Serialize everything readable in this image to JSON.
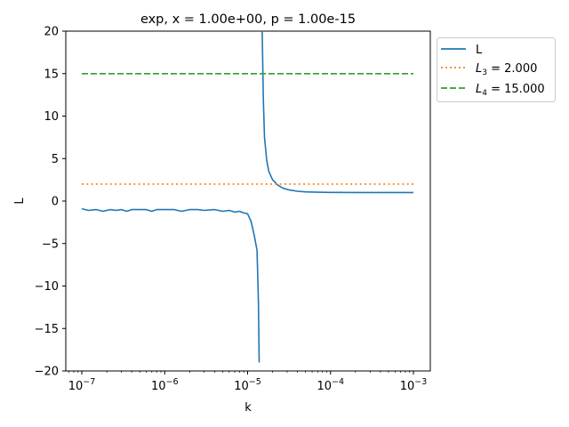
{
  "chart_data": {
    "type": "line",
    "title": "exp, x = 1.00e+00, p = 1.00e-15",
    "xlabel": "k",
    "ylabel": "L",
    "xscale": "log",
    "xlim": [
      6.5e-08,
      0.00155
    ],
    "ylim": [
      -20,
      20
    ],
    "x_ticks": [
      "10^-7",
      "10^-6",
      "10^-5",
      "10^-4",
      "10^-3"
    ],
    "x_tick_exponents": [
      "−7",
      "−6",
      "−5",
      "−4",
      "−3"
    ],
    "y_ticks": [
      "20",
      "15",
      "10",
      "5",
      "0",
      "−5",
      "−10",
      "−15",
      "−20"
    ],
    "grid": false,
    "legend_position": "outside upper right",
    "series": [
      {
        "name": "L",
        "color": "#1f77b4",
        "style": "solid",
        "branches": [
          {
            "x": [
              1e-07,
              1.2e-07,
              1.5e-07,
              1.8e-07,
              2.2e-07,
              2.6e-07,
              3e-07,
              3.5e-07,
              4e-07,
              5e-07,
              6e-07,
              7e-07,
              8e-07,
              1e-06,
              1.3e-06,
              1.6e-06,
              2e-06,
              2.5e-06,
              3e-06,
              4e-06,
              5e-06,
              6e-06,
              7e-06,
              8e-06,
              9e-06,
              1e-05,
              1.1e-05,
              1.2e-05,
              1.3e-05,
              1.35e-05,
              1.38e-05
            ],
            "y": [
              -0.9,
              -1.1,
              -1.0,
              -1.2,
              -1.0,
              -1.1,
              -1.0,
              -1.2,
              -1.0,
              -1.0,
              -1.0,
              -1.2,
              -1.0,
              -1.0,
              -1.0,
              -1.2,
              -1.0,
              -1.0,
              -1.1,
              -1.0,
              -1.2,
              -1.1,
              -1.3,
              -1.2,
              -1.4,
              -1.5,
              -2.4,
              -4.0,
              -5.8,
              -12,
              -19
            ]
          },
          {
            "x": [
              1.5e-05,
              1.55e-05,
              1.6e-05,
              1.7e-05,
              1.8e-05,
              2e-05,
              2.3e-05,
              2.7e-05,
              3.2e-05,
              4e-05,
              5e-05,
              7e-05,
              0.0001,
              0.0002,
              0.0005,
              0.001
            ],
            "y": [
              20,
              12,
              7.5,
              4.8,
              3.5,
              2.5,
              1.9,
              1.5,
              1.3,
              1.15,
              1.08,
              1.04,
              1.02,
              1.01,
              1.0,
              1.0
            ]
          }
        ]
      },
      {
        "name": "L_3 = 2.000",
        "color": "#ff7f0e",
        "style": "dotted",
        "x": [
          1e-07,
          0.001
        ],
        "y": [
          2.0,
          2.0
        ]
      },
      {
        "name": "L_4 = 15.000",
        "color": "#2ca02c",
        "style": "dashed",
        "x": [
          1e-07,
          0.001
        ],
        "y": [
          15.0,
          15.0
        ]
      }
    ]
  },
  "legend": {
    "items": [
      {
        "label": "L",
        "sub": "",
        "value": ""
      },
      {
        "label": "L",
        "sub": "3",
        "value": " = 2.000"
      },
      {
        "label": "L",
        "sub": "4",
        "value": " = 15.000"
      }
    ]
  }
}
